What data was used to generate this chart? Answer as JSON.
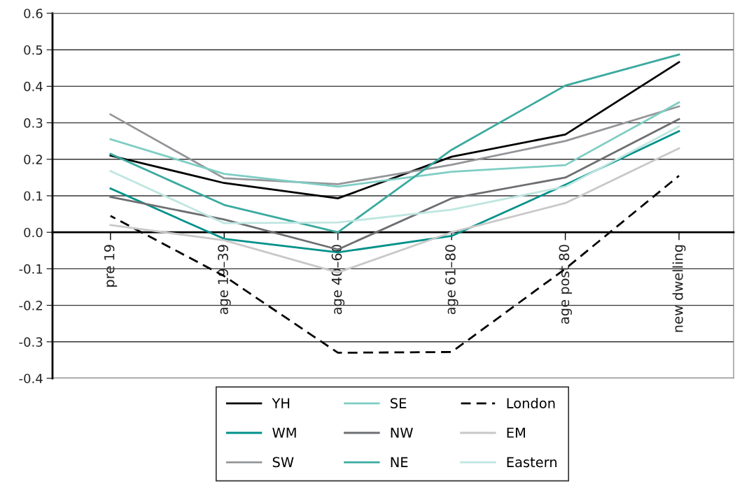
{
  "chart_data": {
    "type": "line",
    "categories": [
      "pre 19",
      "age 19–39",
      "age 40–60",
      "age 61–80",
      "age post 80",
      "new dwelling"
    ],
    "series": [
      {
        "name": "YH",
        "color": "#000000",
        "values": [
          0.21,
          0.135,
          0.093,
          0.207,
          0.268,
          0.466
        ]
      },
      {
        "name": "WM",
        "color": "#00918a",
        "values": [
          0.12,
          -0.018,
          -0.055,
          -0.01,
          0.13,
          0.277
        ]
      },
      {
        "name": "SW",
        "color": "#939598",
        "values": [
          0.323,
          0.148,
          0.132,
          0.185,
          0.25,
          0.345
        ]
      },
      {
        "name": "SE",
        "color": "#7fcdc4",
        "values": [
          0.255,
          0.16,
          0.125,
          0.166,
          0.184,
          0.356
        ]
      },
      {
        "name": "NW",
        "color": "#6d6e71",
        "values": [
          0.097,
          0.035,
          -0.047,
          0.093,
          0.15,
          0.31
        ]
      },
      {
        "name": "NE",
        "color": "#3aaa9f",
        "values": [
          0.215,
          0.075,
          0.0,
          0.226,
          0.402,
          0.487
        ]
      },
      {
        "name": "London",
        "color": "#000000",
        "line_style": "dashed",
        "values": [
          0.045,
          -0.12,
          -0.33,
          -0.328,
          -0.1,
          0.155
        ]
      },
      {
        "name": "EM",
        "color": "#c8c8c8",
        "values": [
          0.02,
          -0.022,
          -0.11,
          0.0,
          0.08,
          0.23
        ]
      },
      {
        "name": "Eastern",
        "color": "#bfe6e1",
        "values": [
          0.168,
          0.025,
          0.027,
          0.062,
          0.125,
          0.29
        ]
      }
    ],
    "ylim": [
      -0.4,
      0.6
    ],
    "yticks": [
      -0.4,
      -0.3,
      -0.2,
      -0.1,
      {
        "value": 0,
        "label": "0.0"
      },
      0.1,
      0.2,
      0.3,
      0.4,
      0.5,
      0.6
    ],
    "grid": "y",
    "legend": "bottom",
    "line_style": "solid",
    "marker": "none"
  }
}
